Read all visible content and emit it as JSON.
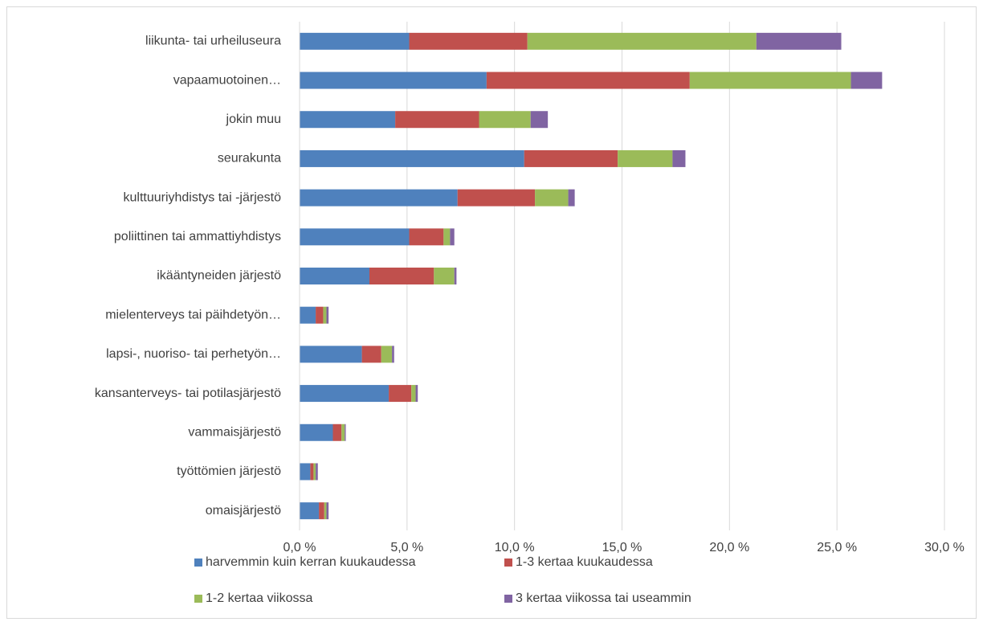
{
  "chart_data": {
    "type": "stacked-bar-horizontal",
    "categories": [
      "liikunta- tai urheiluseura",
      "vapaamuotoinen…",
      "jokin muu",
      "seurakunta",
      "kulttuuriyhdistys tai -järjestö",
      "poliittinen tai ammattiyhdistys",
      "ikääntyneiden järjestö",
      "mielenterveys tai päihdetyön…",
      "lapsi-, nuoriso- tai perhetyön…",
      "kansanterveys- tai potilasjärjestö",
      "vammaisjärjestö",
      "työttömien järjestö",
      "omaisjärjestö"
    ],
    "series": [
      {
        "name": "harvemmin kuin kerran kuukaudessa",
        "color": "#4f81bd",
        "values": [
          5.1,
          8.7,
          4.45,
          10.45,
          7.35,
          5.1,
          3.25,
          0.75,
          2.9,
          4.15,
          1.55,
          0.5,
          0.9
        ]
      },
      {
        "name": "1-3 kertaa kuukaudessa",
        "color": "#c0504d",
        "values": [
          5.5,
          9.45,
          3.9,
          4.35,
          3.6,
          1.6,
          3.0,
          0.35,
          0.9,
          1.05,
          0.4,
          0.15,
          0.25
        ]
      },
      {
        "name": "1-2 kertaa viikossa",
        "color": "#9bbb59",
        "values": [
          10.65,
          7.5,
          2.4,
          2.55,
          1.55,
          0.3,
          0.95,
          0.15,
          0.5,
          0.2,
          0.15,
          0.1,
          0.1
        ]
      },
      {
        "name": "3 kertaa viikossa tai useammin",
        "color": "#8064a2",
        "values": [
          3.95,
          1.45,
          0.8,
          0.6,
          0.3,
          0.2,
          0.1,
          0.1,
          0.1,
          0.1,
          0.05,
          0.1,
          0.1
        ]
      }
    ],
    "xlim": [
      0,
      30
    ],
    "xticks": [
      {
        "value": 0,
        "label": "0,0 %"
      },
      {
        "value": 5,
        "label": "5,0 %"
      },
      {
        "value": 10,
        "label": "10,0 %"
      },
      {
        "value": 15,
        "label": "15,0 %"
      },
      {
        "value": 20,
        "label": "20,0 %"
      },
      {
        "value": 25,
        "label": "25,0 %"
      },
      {
        "value": 30,
        "label": "30,0 %"
      }
    ],
    "grid": true,
    "legend": "bottom"
  }
}
